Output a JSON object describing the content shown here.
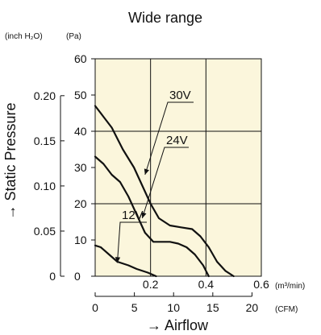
{
  "chart_data": {
    "type": "line",
    "title": "Wide range",
    "ylabel": "→ Static Pressure",
    "xlabel": "→ Airflow",
    "y_unit_left": "(inch H₂O)",
    "y_unit_right": "(Pa)",
    "x_unit_top": "(m³/min)",
    "x_unit_bottom": "(CFM)",
    "xlim": [
      0,
      0.6
    ],
    "ylim": [
      0,
      60
    ],
    "x_ticks": [
      0.2,
      0.4,
      0.6
    ],
    "x_tick_labels": [
      "0.2",
      "0.4",
      "0.6"
    ],
    "cfm_ticks": [
      0,
      5,
      10,
      15,
      20
    ],
    "cfm_tick_labels": [
      "0",
      "5",
      "10",
      "15",
      "20"
    ],
    "pa_ticks": [
      0,
      10,
      20,
      30,
      40,
      50,
      60
    ],
    "pa_tick_labels": [
      "0",
      "10",
      "20",
      "30",
      "40",
      "50",
      "60"
    ],
    "inch_ticks": [
      0,
      0.05,
      0.1,
      0.15,
      0.2
    ],
    "inch_tick_labels": [
      "0",
      "0.05",
      "0.10",
      "0.15",
      "0.20"
    ],
    "grid": true,
    "background_color": "#fbf6dc",
    "line_color": "#111111",
    "series": [
      {
        "name": "30V",
        "x": [
          0,
          0.03,
          0.06,
          0.1,
          0.14,
          0.17,
          0.2,
          0.23,
          0.27,
          0.31,
          0.35,
          0.38,
          0.41,
          0.44,
          0.47,
          0.5
        ],
        "y": [
          47,
          44,
          41,
          35,
          30,
          25,
          20,
          16,
          14,
          13.5,
          13,
          11,
          8,
          4,
          1.5,
          0
        ]
      },
      {
        "name": "24V",
        "x": [
          0,
          0.03,
          0.06,
          0.09,
          0.12,
          0.15,
          0.18,
          0.21,
          0.24,
          0.27,
          0.3,
          0.33,
          0.36,
          0.39,
          0.41
        ],
        "y": [
          33,
          31,
          28,
          26,
          22,
          17,
          12,
          9.5,
          9.5,
          9.5,
          9,
          8,
          6,
          3,
          0
        ]
      },
      {
        "name": "12V",
        "x": [
          0,
          0.02,
          0.05,
          0.08,
          0.12,
          0.15,
          0.19,
          0.22
        ],
        "y": [
          8.5,
          8,
          6,
          4,
          3,
          2,
          1,
          0
        ]
      }
    ]
  }
}
